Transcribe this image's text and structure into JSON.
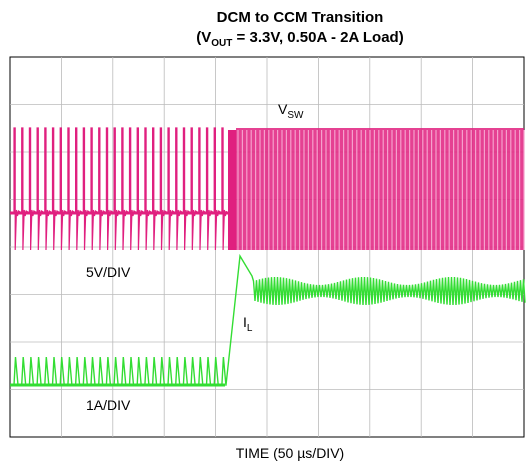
{
  "title": {
    "line1": "DCM to CCM Transition",
    "line2_open": "(V",
    "line2_sub": "OUT",
    "line2_rest": " = 3.3V, 0.50A - 2A Load)"
  },
  "labels": {
    "vsw_main": "V",
    "vsw_sub": "SW",
    "vsw_scale": "5V/DIV",
    "il_main": "I",
    "il_sub": "L",
    "il_scale": "1A/DIV"
  },
  "x_axis_label": "TIME (50 µs/DIV)"
}
